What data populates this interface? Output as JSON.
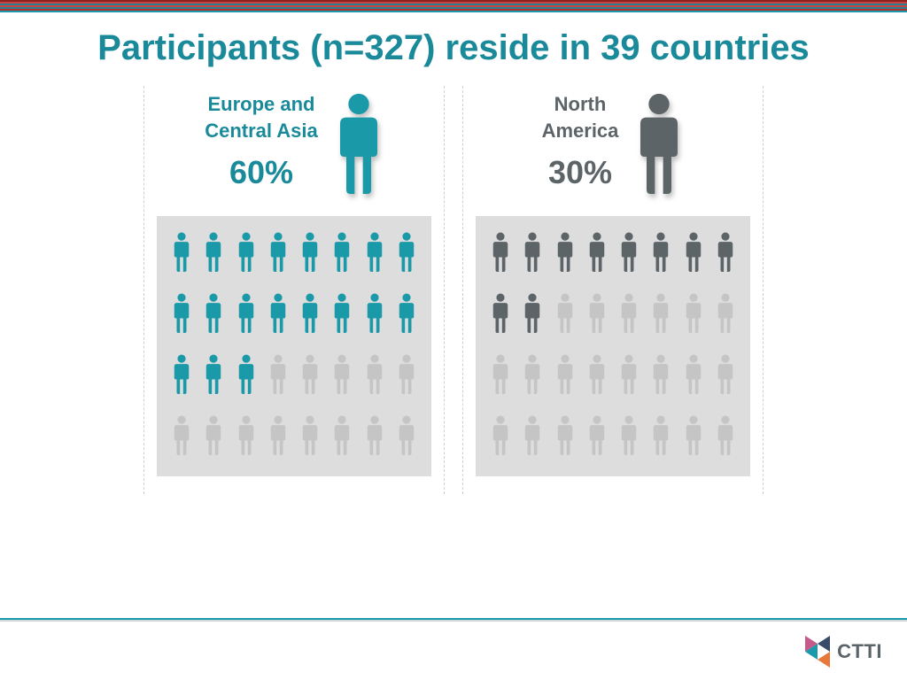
{
  "title": "Participants (n=327) reside in 39 countries",
  "title_color": "#1a8a9a",
  "colors": {
    "inactive_fill": "#c5c5c5",
    "grid_bg": "#dddddd"
  },
  "pictogram": {
    "rows": 4,
    "cols": 8,
    "total": 32
  },
  "panels": [
    {
      "region_line1": "Europe and",
      "region_line2": "Central Asia",
      "percent_label": "60%",
      "filled": 19,
      "text_color": "#1a8a9a",
      "icon_color": "#1a99a8"
    },
    {
      "region_line1": "North",
      "region_line2": "America",
      "percent_label": "30%",
      "filled": 10,
      "text_color": "#5c6468",
      "icon_color": "#5c6468"
    }
  ],
  "logo_text": "CTTI",
  "logo_colors": {
    "tri_top": "#c65a8a",
    "tri_mid_dark": "#3a4a6a",
    "tri_mid_teal": "#1a9aaa",
    "tri_bottom": "#e77a3a"
  }
}
